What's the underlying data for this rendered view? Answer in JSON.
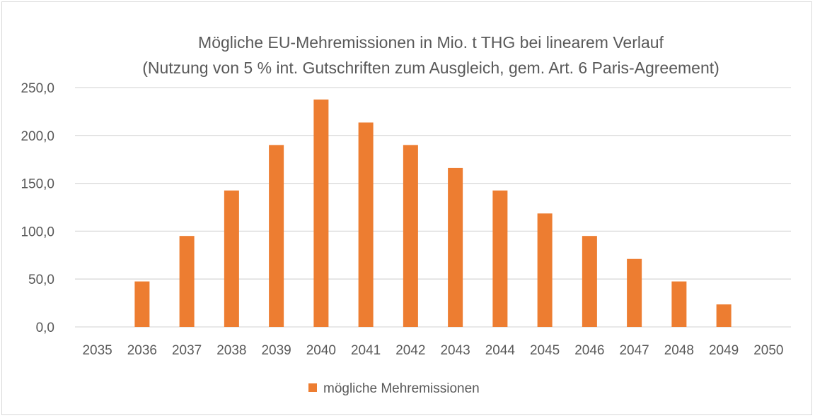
{
  "chart_data": {
    "type": "bar",
    "title": "Mögliche EU-Mehremissionen in Mio. t THG bei linearem Verlauf",
    "subtitle": "(Nutzung von 5 % int. Gutschriften zum Ausgleich, gem. Art. 6 Paris-Agreement)",
    "xlabel": "",
    "ylabel": "",
    "categories": [
      "2035",
      "2036",
      "2037",
      "2038",
      "2039",
      "2040",
      "2041",
      "2042",
      "2043",
      "2044",
      "2045",
      "2046",
      "2047",
      "2048",
      "2049",
      "2050"
    ],
    "series": [
      {
        "name": "mögliche Mehremissionen",
        "color": "#ED7D31",
        "values": [
          0,
          47.5,
          95,
          142.5,
          190,
          237.5,
          213.5,
          190,
          166,
          142.5,
          118.5,
          95,
          71,
          47.5,
          23.5,
          0
        ]
      }
    ],
    "ylim": [
      0,
      250
    ],
    "yticks": [
      "0,0",
      "50,0",
      "100,0",
      "150,0",
      "200,0",
      "250,0"
    ],
    "grid": true,
    "legend_position": "bottom"
  }
}
